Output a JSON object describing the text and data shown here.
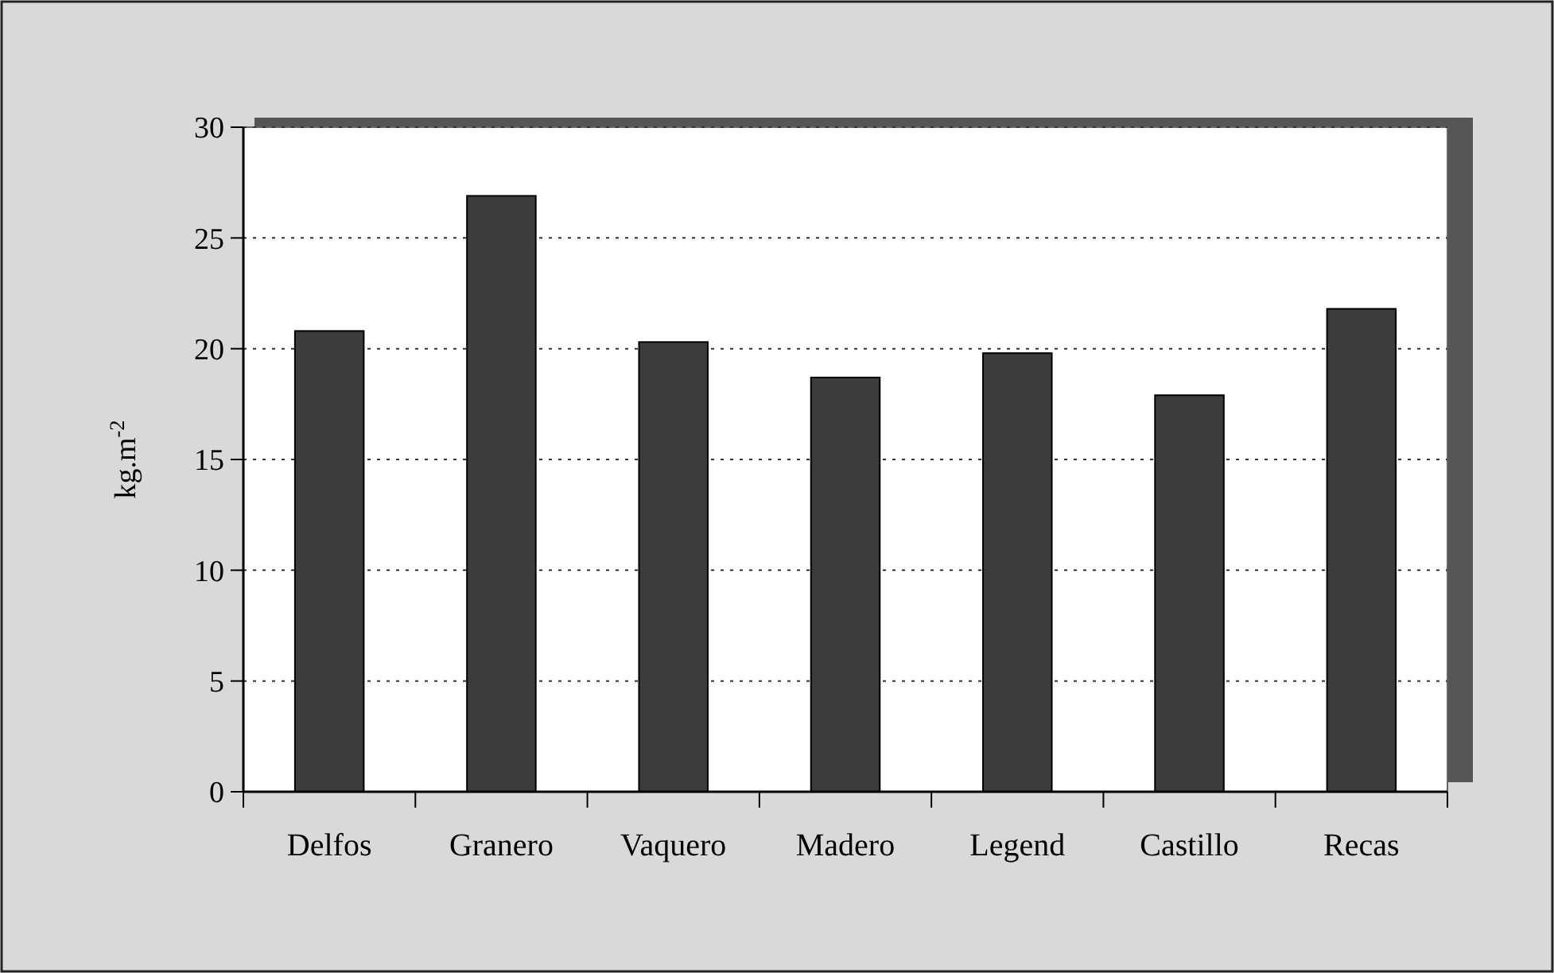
{
  "chart_data": {
    "type": "bar",
    "ylabel": "kg.m$^{-2}$",
    "categories": [
      "Delfos",
      "Granero",
      "Vaquero",
      "Madero",
      "Legend",
      "Castillo",
      "Recas"
    ],
    "values": [
      20.8,
      26.9,
      20.3,
      18.7,
      19.8,
      17.9,
      21.8
    ],
    "color": "#3c3c3c",
    "ylim": [
      0,
      30
    ],
    "yticks": [
      0,
      5,
      10,
      15,
      20,
      25,
      30
    ],
    "grid": "y"
  }
}
